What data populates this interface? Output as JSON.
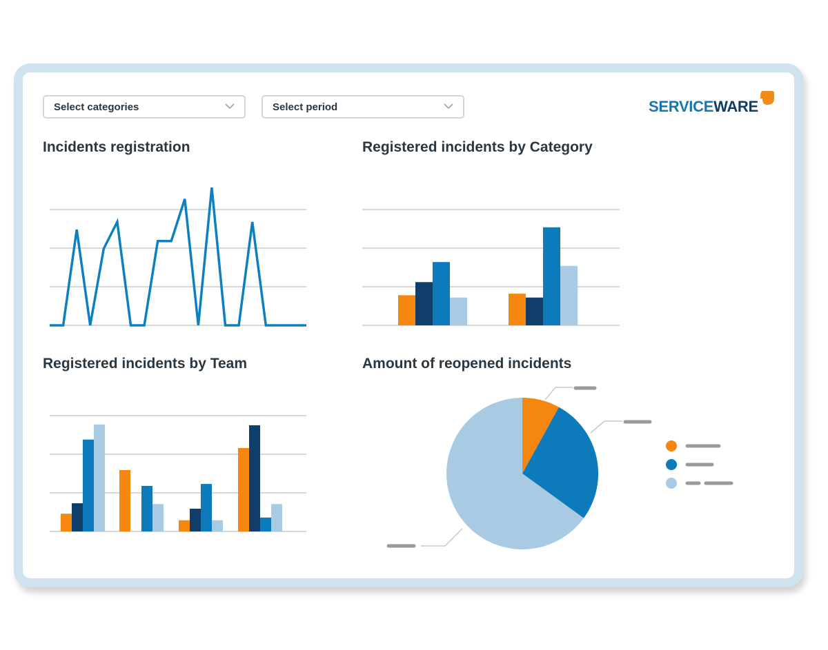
{
  "filters": {
    "categories": {
      "value": "Select categories"
    },
    "period": {
      "value": "Select period"
    }
  },
  "brand": {
    "name_part1": "SERVICE",
    "name_part2": "WARE",
    "colors": {
      "service": "#1677b0",
      "ware": "#0e3d66",
      "mark": "#f28a16"
    }
  },
  "icons": {
    "dropdown": "chevron-down-icon",
    "logo": "serviceware-logo-icon"
  },
  "colors": {
    "orange": "#f5860f",
    "navy": "#0f3e6a",
    "blue": "#0d7bbb",
    "lightblue": "#a8cae2",
    "grid": "#d8d8d8",
    "placeholder": "#9a9a9a"
  },
  "chart_data": [
    {
      "id": "registration",
      "type": "line",
      "title": "Incidents registration",
      "grid": true,
      "ylim": [
        0,
        3.6
      ],
      "x": [
        0,
        1,
        2,
        3,
        4,
        5,
        6,
        7,
        8,
        9,
        10,
        11,
        12,
        13,
        14,
        15,
        16,
        17,
        18,
        19
      ],
      "series": [
        {
          "values": [
            0,
            0,
            2.5,
            0,
            2,
            2.7,
            0,
            0,
            2.2,
            2.2,
            3.3,
            0,
            3.6,
            0,
            0,
            2.7,
            0,
            0,
            0,
            0
          ]
        }
      ]
    },
    {
      "id": "by-category",
      "type": "bar",
      "title": "Registered incidents by Category",
      "grid": true,
      "ylim": [
        0,
        3
      ],
      "categories": [
        "",
        ""
      ],
      "series": [
        {
          "values": [
            0.78,
            0.82
          ]
        },
        {
          "values": [
            1.12,
            0.72
          ]
        },
        {
          "values": [
            1.64,
            2.54
          ]
        },
        {
          "values": [
            0.72,
            1.54
          ]
        }
      ]
    },
    {
      "id": "by-team",
      "type": "bar",
      "title": "Registered incidents by Team",
      "grid": true,
      "ylim": [
        0,
        3
      ],
      "categories": [
        "",
        "",
        "",
        ""
      ],
      "series": [
        {
          "values": [
            0.46,
            1.59,
            0.29,
            2.16
          ]
        },
        {
          "values": [
            0.73,
            0,
            0.59,
            2.75
          ]
        },
        {
          "values": [
            2.38,
            1.18,
            1.23,
            0.36
          ]
        },
        {
          "values": [
            2.77,
            0.71,
            0.29,
            0.71
          ]
        }
      ]
    },
    {
      "id": "reopened",
      "type": "pie",
      "title": "Amount of reopened incidents",
      "legend_position": "right",
      "slices": [
        {
          "value": 8,
          "color": "#f5860f"
        },
        {
          "value": 27,
          "color": "#0d7bbb"
        },
        {
          "value": 65,
          "color": "#a8cae2"
        }
      ]
    }
  ]
}
